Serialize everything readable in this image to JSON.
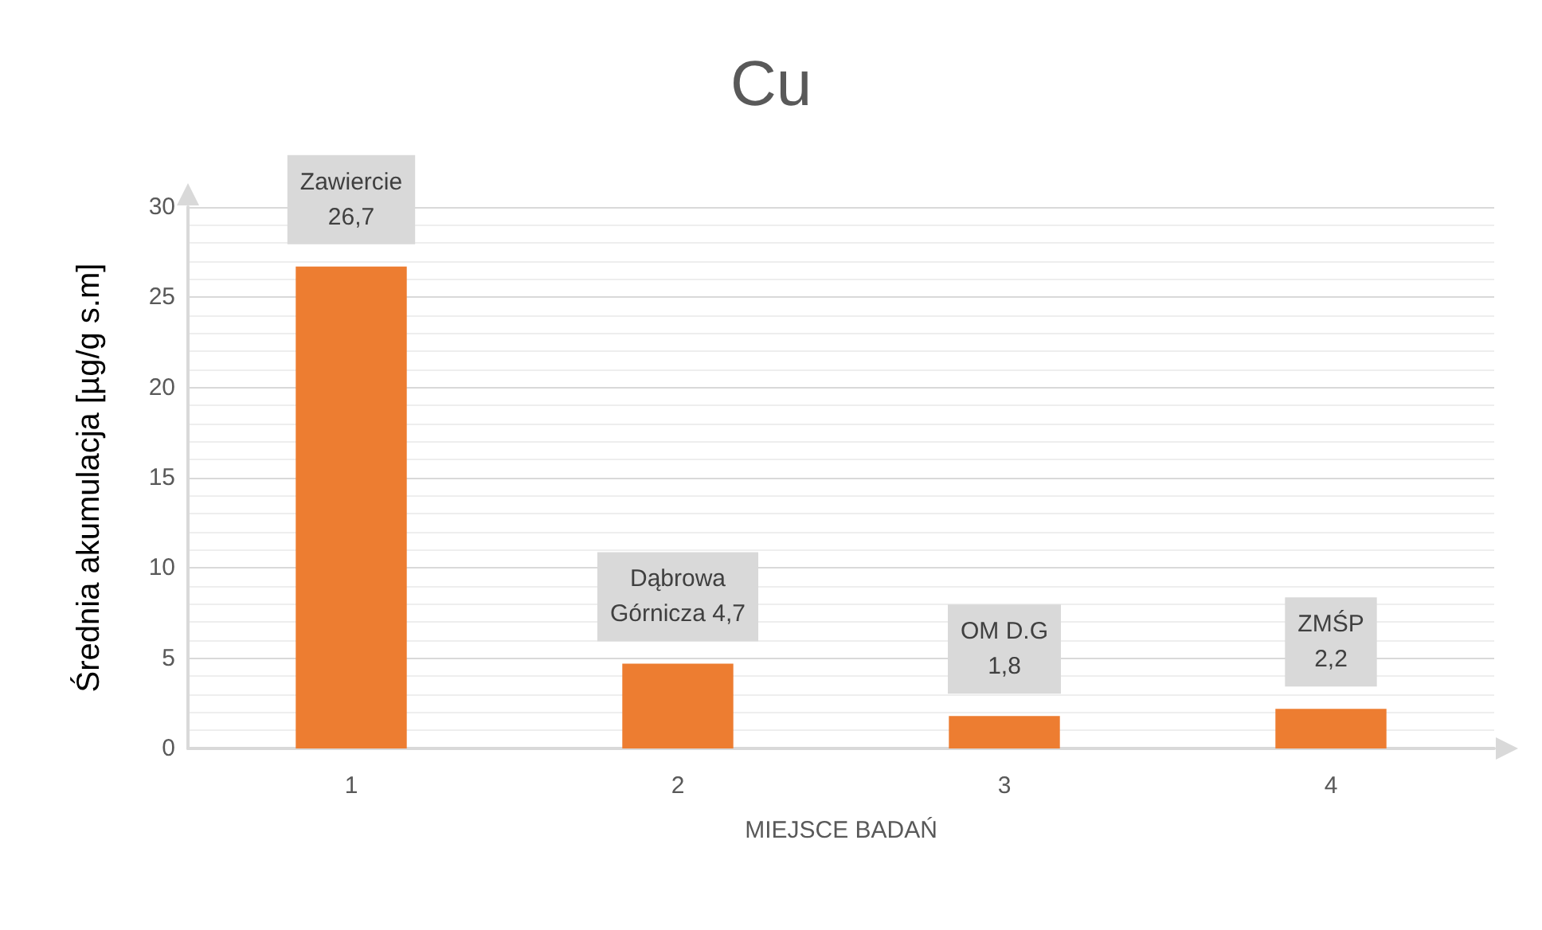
{
  "chart_data": {
    "type": "bar",
    "title": "Cu",
    "xlabel": "MIEJSCE BADAŃ",
    "ylabel": "Średnia akumulacja [µg/g s.m]",
    "categories": [
      "1",
      "2",
      "3",
      "4"
    ],
    "values": [
      26.7,
      4.7,
      1.8,
      2.2
    ],
    "value_labels": [
      "Zawiercie\n26,7",
      "Dąbrowa\nGórnicza 4,7",
      "OM D.G\n1,8",
      "ZMŚP\n2,2"
    ],
    "color": "#ed7d31",
    "ylim": [
      0,
      30
    ],
    "yticks": [
      0,
      5,
      10,
      15,
      20,
      25,
      30
    ],
    "grid": "y"
  }
}
